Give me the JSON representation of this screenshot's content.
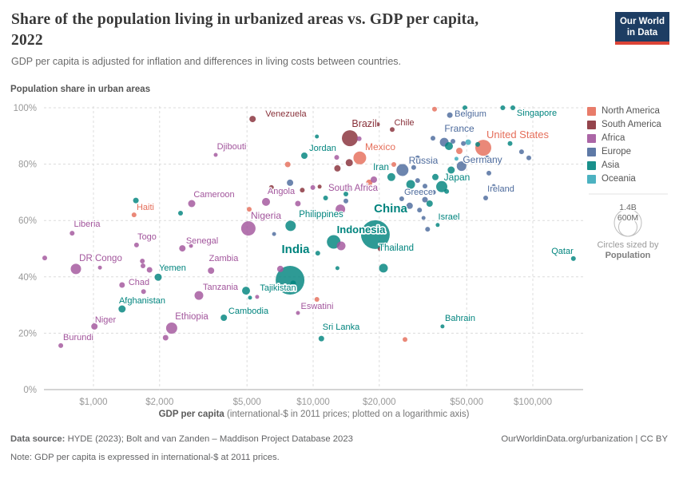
{
  "header": {
    "title_line1": "Share of the population living in urbanized areas vs. GDP per capita,",
    "title_line2": "2022",
    "subtitle": "GDP per capita is adjusted for inflation and differences in living costs between countries.",
    "logo_line1": "Our World",
    "logo_line2": "in Data"
  },
  "footer": {
    "data_source_label": "Data source:",
    "data_source_text": " HYDE (2023); Bolt and van Zanden – Maddison Project Database 2023",
    "right_text": "OurWorldinData.org/urbanization | CC BY",
    "note_label": "Note:",
    "note_text": " GDP per capita is expressed in international-$ at 2011 prices."
  },
  "chart_data": {
    "type": "scatter",
    "title": "Share of the population living in urbanized areas vs. GDP per capita, 2022",
    "x_axis": {
      "label_bold": "GDP per capita",
      "label_rest": " (international-$ in 2011 prices; plotted on a logarithmic axis)",
      "scale": "log",
      "ticks": [
        "$1,000",
        "$2,000",
        "$5,000",
        "$10,000",
        "$20,000",
        "$50,000",
        "$100,000"
      ],
      "tick_values": [
        1000,
        2000,
        5000,
        10000,
        20000,
        50000,
        100000
      ]
    },
    "y_axis": {
      "label": "Population share in urban areas",
      "ticks": [
        "0%",
        "20%",
        "40%",
        "60%",
        "80%",
        "100%"
      ],
      "tick_values": [
        0,
        20,
        40,
        60,
        80,
        100
      ],
      "range": [
        0,
        100
      ]
    },
    "legend": [
      {
        "key": "NA",
        "label": "North America",
        "color": "#e56e5a"
      },
      {
        "key": "SA",
        "label": "South America",
        "color": "#883039"
      },
      {
        "key": "AF",
        "label": "Africa",
        "color": "#a2559c"
      },
      {
        "key": "EU",
        "label": "Europe",
        "color": "#4c6a9c"
      },
      {
        "key": "AS",
        "label": "Asia",
        "color": "#00847e"
      },
      {
        "key": "OC",
        "label": "Oceania",
        "color": "#38aaba"
      }
    ],
    "size_legend": {
      "big_label": "1.4B",
      "small_label": "600M",
      "caption_line1": "Circles sized by",
      "caption_line2": "Population"
    },
    "points_format": [
      "name",
      "continent",
      "gdp_intl_dollars",
      "urban_share_pct",
      "radius_px",
      "label_x",
      "label_y",
      "label_font_px",
      "flags(b=bold,o=halo)"
    ],
    "points": [
      [
        "Venezuela",
        "SA",
        5300,
        96,
        4,
        358,
        146,
        11
      ],
      [
        "Brazil",
        "SA",
        14700,
        89.2,
        10,
        456,
        159,
        12.5
      ],
      [
        "Chile",
        "SA",
        22900,
        92.3,
        3,
        506,
        157,
        11
      ],
      [
        "Belgium",
        "EU",
        41900,
        97.4,
        3.5,
        589,
        146,
        11
      ],
      [
        "Singapore",
        "AS",
        81100,
        100,
        3,
        672,
        145,
        11
      ],
      [
        "Djibouti",
        "AF",
        3600,
        83.3,
        2.5,
        290,
        187,
        11
      ],
      [
        "Jordan",
        "AS",
        9120,
        83,
        4,
        404,
        189,
        11
      ],
      [
        "Mexico",
        "NA",
        16300,
        82.2,
        8,
        476,
        188,
        12
      ],
      [
        "France",
        "EU",
        39500,
        87.8,
        5.5,
        575,
        165,
        12
      ],
      [
        "United States",
        "NA",
        59500,
        85.8,
        10,
        648,
        173,
        13
      ],
      [
        "Russia",
        "EU",
        25500,
        77.9,
        7.5,
        530,
        205,
        12
      ],
      [
        "Iran",
        "AS",
        22700,
        75.4,
        5,
        477,
        213,
        11.5
      ],
      [
        "Germany",
        "EU",
        47400,
        79.3,
        6,
        604,
        204,
        12
      ],
      [
        "Japan",
        "AS",
        38500,
        72,
        7,
        572,
        226,
        12
      ],
      [
        "Ireland",
        "EU",
        61000,
        68,
        3,
        627,
        240,
        11
      ],
      [
        "Cameroon",
        "AF",
        2800,
        66,
        4.5,
        268,
        247,
        11
      ],
      [
        "Angola",
        "AF",
        6100,
        66.6,
        5,
        352,
        243,
        11
      ],
      [
        "South Africa",
        "AF",
        13300,
        64,
        6,
        442,
        239,
        11.5
      ],
      [
        "Greece",
        "EU",
        27500,
        65.2,
        4,
        524,
        244,
        11
      ],
      [
        "Haiti",
        "NA",
        1530,
        62,
        3,
        182,
        263,
        11
      ],
      [
        "Liberia",
        "AF",
        800,
        55.5,
        3,
        109,
        284,
        11
      ],
      [
        "Nigeria",
        "AF",
        5070,
        57.2,
        9,
        333,
        274,
        12
      ],
      [
        "Philippines",
        "AS",
        7900,
        58.1,
        6.5,
        402,
        272,
        11.5
      ],
      [
        "China",
        "AS",
        19200,
        55,
        18,
        489,
        266,
        15,
        "b"
      ],
      [
        "Indonesia",
        "AS",
        12400,
        52.4,
        8.5,
        452,
        292,
        13,
        "bo"
      ],
      [
        "Israel",
        "AS",
        36900,
        58.4,
        2.5,
        562,
        275,
        11
      ],
      [
        "Togo",
        "AF",
        1570,
        51.3,
        3,
        184,
        300,
        11
      ],
      [
        "Senegal",
        "AF",
        2540,
        50.1,
        4,
        253,
        305,
        11
      ],
      [
        "DR Congo",
        "AF",
        832,
        42.8,
        6.5,
        126,
        327,
        11.5
      ],
      [
        "Zambia",
        "AF",
        3430,
        42.2,
        4,
        280,
        327,
        11
      ],
      [
        "Qatar",
        "AS",
        153000,
        46.5,
        3,
        704,
        318,
        11
      ],
      [
        "Yemen",
        "AS",
        1970,
        39.9,
        4.5,
        216,
        339,
        11
      ],
      [
        "Chad",
        "AF",
        1350,
        37.1,
        3.5,
        174,
        357,
        11
      ],
      [
        "India",
        "AS",
        7850,
        38.8,
        18,
        370,
        317,
        15,
        "b"
      ],
      [
        "Thailand",
        "AS",
        20900,
        43.1,
        5.5,
        496,
        314,
        11.5
      ],
      [
        "Tanzania",
        "AF",
        3020,
        33.4,
        5.5,
        276,
        363,
        11
      ],
      [
        "Tajikistan",
        "AS",
        4950,
        35.1,
        5,
        348,
        364,
        11,
        "o"
      ],
      [
        "Afghanistan",
        "AS",
        1350,
        28.6,
        4.5,
        178,
        380,
        11
      ],
      [
        "Eswatini",
        "AF",
        8530,
        27.2,
        2.5,
        397,
        387,
        11
      ],
      [
        "Niger",
        "AF",
        1010,
        22.4,
        4,
        132,
        404,
        11
      ],
      [
        "Ethiopia",
        "AF",
        2270,
        21.8,
        7,
        240,
        400,
        11.5
      ],
      [
        "Cambodia",
        "AS",
        3920,
        25.5,
        4,
        311,
        393,
        11
      ],
      [
        "Sri Lanka",
        "AS",
        10900,
        18.1,
        3.5,
        427,
        413,
        11
      ],
      [
        "Bahrain",
        "AS",
        38800,
        22.4,
        2.5,
        576,
        402,
        11
      ],
      [
        "Burundi",
        "AF",
        710,
        15.6,
        3,
        98,
        426,
        11
      ],
      [
        "",
        "NA",
        35700,
        99.5,
        3
      ],
      [
        "",
        "NA",
        46300,
        84.7,
        4
      ],
      [
        "",
        "NA",
        23300,
        79.9,
        3
      ],
      [
        "",
        "NA",
        18000,
        73.4,
        4
      ],
      [
        "",
        "NA",
        7660,
        79.9,
        3.5
      ],
      [
        "",
        "NA",
        5120,
        64,
        3
      ],
      [
        "",
        "NA",
        10400,
        32,
        3
      ],
      [
        "",
        "NA",
        26200,
        17.8,
        3
      ],
      [
        "",
        "SA",
        18100,
        94.6,
        2.5
      ],
      [
        "",
        "SA",
        19700,
        94.1,
        2.5
      ],
      [
        "",
        "SA",
        12900,
        78.5,
        4
      ],
      [
        "",
        "SA",
        14600,
        80.5,
        4.5
      ],
      [
        "",
        "SA",
        6460,
        71.7,
        3
      ],
      [
        "",
        "SA",
        8920,
        70.8,
        3
      ],
      [
        "",
        "SA",
        10700,
        72,
        2.5
      ],
      [
        "",
        "SA",
        20100,
        49.9,
        2.5
      ],
      [
        "",
        "AF",
        16200,
        89,
        3
      ],
      [
        "",
        "AF",
        12800,
        82.4,
        3
      ],
      [
        "",
        "AF",
        18900,
        74.5,
        4
      ],
      [
        "",
        "AF",
        9970,
        71.7,
        3
      ],
      [
        "",
        "AF",
        8520,
        66,
        3.5
      ],
      [
        "",
        "AF",
        2780,
        51,
        2.5
      ],
      [
        "",
        "AF",
        1670,
        45.6,
        3
      ],
      [
        "",
        "AF",
        1680,
        43.9,
        3
      ],
      [
        "",
        "AF",
        1800,
        42.5,
        3.5
      ],
      [
        "",
        "AF",
        1070,
        43.3,
        2.5
      ],
      [
        "",
        "AF",
        600,
        46.7,
        3
      ],
      [
        "",
        "AF",
        1690,
        34.8,
        3
      ],
      [
        "",
        "AF",
        2130,
        18.4,
        3.5
      ],
      [
        "",
        "AF",
        5560,
        32.9,
        2.5
      ],
      [
        "",
        "AF",
        13400,
        51,
        5.5
      ],
      [
        "",
        "AF",
        7090,
        42.8,
        4
      ],
      [
        "",
        "EU",
        7850,
        73.4,
        4
      ],
      [
        "",
        "EU",
        6640,
        55.2,
        2.5
      ],
      [
        "",
        "EU",
        29900,
        82.2,
        3
      ],
      [
        "",
        "EU",
        28700,
        78.8,
        3
      ],
      [
        "",
        "EU",
        32300,
        72.2,
        3
      ],
      [
        "",
        "EU",
        29900,
        74.2,
        3
      ],
      [
        "",
        "EU",
        25300,
        67.7,
        3
      ],
      [
        "",
        "EU",
        32300,
        67.4,
        3.5
      ],
      [
        "",
        "EU",
        35300,
        70,
        3
      ],
      [
        "",
        "EU",
        30500,
        63.7,
        3
      ],
      [
        "",
        "EU",
        31800,
        60.9,
        2.5
      ],
      [
        "",
        "EU",
        33200,
        56.9,
        3
      ],
      [
        "",
        "EU",
        35100,
        89.2,
        3
      ],
      [
        "",
        "EU",
        43300,
        88.1,
        3
      ],
      [
        "",
        "EU",
        48300,
        87.3,
        3
      ],
      [
        "",
        "EU",
        62100,
        82.2,
        3
      ],
      [
        "",
        "EU",
        63100,
        76.8,
        3
      ],
      [
        "",
        "EU",
        88900,
        84.4,
        3
      ],
      [
        "",
        "EU",
        95900,
        82.2,
        3
      ],
      [
        "",
        "EU",
        14800,
        71.1,
        3
      ],
      [
        "",
        "EU",
        14100,
        66.9,
        3
      ],
      [
        "",
        "EU",
        66400,
        72.2,
        2.5
      ],
      [
        "",
        "AS",
        27800,
        72.8,
        5.5
      ],
      [
        "",
        "AS",
        33900,
        66,
        4
      ],
      [
        "",
        "AS",
        40500,
        70.3,
        3
      ],
      [
        "",
        "AS",
        36000,
        75.4,
        4
      ],
      [
        "",
        "AS",
        42500,
        77.9,
        4.5
      ],
      [
        "",
        "AS",
        56100,
        87,
        3
      ],
      [
        "",
        "AS",
        78800,
        87.3,
        3
      ],
      [
        "",
        "AS",
        73000,
        100,
        3
      ],
      [
        "",
        "AS",
        49100,
        100,
        3
      ],
      [
        "",
        "AS",
        41500,
        86.4,
        5
      ],
      [
        "",
        "AS",
        10400,
        89.8,
        2.5
      ],
      [
        "",
        "AS",
        11400,
        68,
        3
      ],
      [
        "",
        "AS",
        14100,
        69.4,
        3
      ],
      [
        "",
        "AS",
        8110,
        37.7,
        3.5
      ],
      [
        "",
        "AS",
        5160,
        32.6,
        2.5
      ],
      [
        "",
        "AS",
        10500,
        48.4,
        3
      ],
      [
        "",
        "AS",
        12900,
        43.1,
        2.5
      ],
      [
        "",
        "AS",
        1560,
        67.1,
        3.5
      ],
      [
        "",
        "AS",
        2490,
        62.6,
        3
      ],
      [
        "",
        "OC",
        50800,
        87.8,
        3.5
      ],
      [
        "",
        "OC",
        44900,
        81.9,
        2.5
      ]
    ]
  }
}
